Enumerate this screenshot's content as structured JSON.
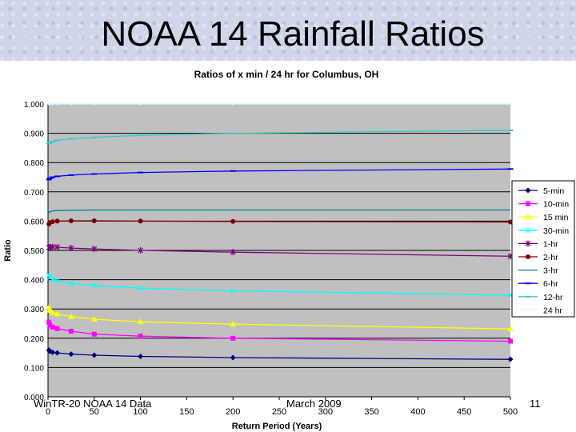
{
  "slide": {
    "title": "NOAA 14 Rainfall Ratios",
    "footer_left": "WinTR-20 NOAA 14 Data",
    "footer_center": "March 2009",
    "footer_right": "11"
  },
  "chart_data": {
    "type": "line",
    "title": "Ratios of x min / 24 hr for Columbus, OH",
    "xlabel": "Return Period (Years)",
    "ylabel": "Ratio",
    "xlim": [
      0,
      500
    ],
    "ylim": [
      0,
      1
    ],
    "xticks": [
      0,
      50,
      100,
      150,
      200,
      250,
      300,
      350,
      400,
      450,
      500
    ],
    "xtick_labels": [
      "0",
      "50",
      "100",
      "150",
      "200",
      "250",
      "300",
      "350",
      "400",
      "450",
      "500"
    ],
    "yticks": [
      0,
      0.1,
      0.2,
      0.3,
      0.4,
      0.5,
      0.6,
      0.7,
      0.8,
      0.9,
      1.0
    ],
    "ytick_labels": [
      "0.000",
      "0.100",
      "0.200",
      "0.300",
      "0.400",
      "0.500",
      "0.600",
      "0.700",
      "0.800",
      "0.900",
      "1.000"
    ],
    "grid": "horizontal",
    "legend_position": "right",
    "plot_background": "#c0c0c0",
    "x": [
      1,
      2,
      5,
      10,
      25,
      50,
      100,
      200,
      500
    ],
    "series": [
      {
        "name": "5-min",
        "color": "#000080",
        "marker": "diamond",
        "values": [
          0.16,
          0.155,
          0.152,
          0.15,
          0.146,
          0.142,
          0.138,
          0.134,
          0.128
        ]
      },
      {
        "name": "10-min",
        "color": "#ff00ff",
        "marker": "square",
        "values": [
          0.255,
          0.245,
          0.238,
          0.233,
          0.224,
          0.214,
          0.207,
          0.2,
          0.19
        ]
      },
      {
        "name": "15 min",
        "color": "#ffff00",
        "marker": "triangle",
        "values": [
          0.305,
          0.295,
          0.288,
          0.283,
          0.274,
          0.265,
          0.256,
          0.248,
          0.232
        ]
      },
      {
        "name": "30-min",
        "color": "#00ffff",
        "marker": "x",
        "values": [
          0.415,
          0.408,
          0.401,
          0.396,
          0.388,
          0.38,
          0.371,
          0.362,
          0.347
        ]
      },
      {
        "name": "1-hr",
        "color": "#800080",
        "marker": "star",
        "values": [
          0.51,
          0.511,
          0.512,
          0.511,
          0.508,
          0.505,
          0.5,
          0.494,
          0.48
        ]
      },
      {
        "name": "2-hr",
        "color": "#800000",
        "marker": "circle",
        "values": [
          0.59,
          0.595,
          0.598,
          0.6,
          0.601,
          0.601,
          0.6,
          0.599,
          0.597
        ]
      },
      {
        "name": "3-hr",
        "color": "#008080",
        "marker": "none",
        "values": [
          0.628,
          0.632,
          0.635,
          0.636,
          0.637,
          0.638,
          0.638,
          0.638,
          0.638
        ]
      },
      {
        "name": "6-hr",
        "color": "#0000ff",
        "marker": "dash",
        "values": [
          0.742,
          0.746,
          0.75,
          0.753,
          0.757,
          0.761,
          0.766,
          0.771,
          0.778
        ]
      },
      {
        "name": "12-hr",
        "color": "#33cccc",
        "marker": "dash",
        "values": [
          0.865,
          0.868,
          0.872,
          0.876,
          0.881,
          0.886,
          0.893,
          0.9,
          0.91
        ]
      },
      {
        "name": "24 hr",
        "color": "#ccffff",
        "marker": "dot",
        "values": [
          1.0,
          1.0,
          1.0,
          1.0,
          1.0,
          1.0,
          1.0,
          1.0,
          1.0
        ]
      }
    ]
  }
}
